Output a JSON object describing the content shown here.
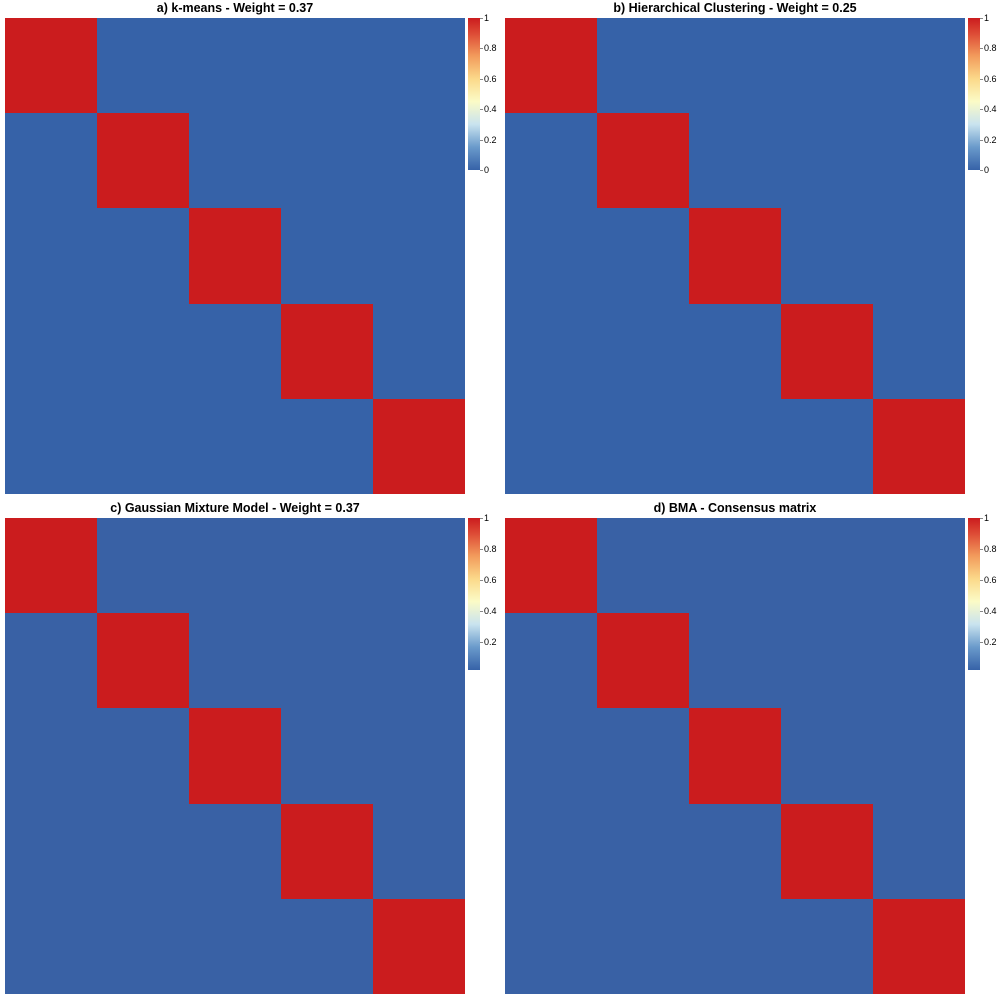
{
  "colors": {
    "low": "#3662a8",
    "high": "#cb1c1e"
  },
  "chart_data": [
    {
      "type": "heatmap",
      "title": "a) k-means - Weight = 0.37",
      "clusters": [
        0.2,
        0.2,
        0.2,
        0.2,
        0.2
      ],
      "within": [
        1,
        1,
        1,
        1,
        1
      ],
      "between": 0,
      "legend_ticks": [
        "0",
        "0.2",
        "0.4",
        "0.6",
        "0.8",
        "1"
      ],
      "legend_range": [
        0,
        1
      ]
    },
    {
      "type": "heatmap",
      "title": "b) Hierarchical Clustering - Weight = 0.25",
      "clusters": [
        0.2,
        0.2,
        0.2,
        0.2,
        0.2
      ],
      "within": [
        1,
        1,
        1,
        1,
        1
      ],
      "between": 0,
      "legend_ticks": [
        "0",
        "0.2",
        "0.4",
        "0.6",
        "0.8",
        "1"
      ],
      "legend_range": [
        0,
        1
      ]
    },
    {
      "type": "heatmap",
      "title": "c) Gaussian Mixture Model - Weight = 0.37",
      "clusters": [
        0.2,
        0.2,
        0.2,
        0.2,
        0.2
      ],
      "within": [
        1,
        1,
        1,
        1,
        1
      ],
      "between": 0.02,
      "legend_ticks": [
        "0.2",
        "0.4",
        "0.6",
        "0.8",
        "1"
      ],
      "legend_range": [
        0.02,
        1
      ]
    },
    {
      "type": "heatmap",
      "title": "d) BMA - Consensus matrix",
      "clusters": [
        0.2,
        0.2,
        0.2,
        0.2,
        0.2
      ],
      "within": [
        1,
        1,
        1,
        1,
        1
      ],
      "between": 0.02,
      "legend_ticks": [
        "0.2",
        "0.4",
        "0.6",
        "0.8",
        "1"
      ],
      "legend_range": [
        0.02,
        1
      ]
    }
  ]
}
